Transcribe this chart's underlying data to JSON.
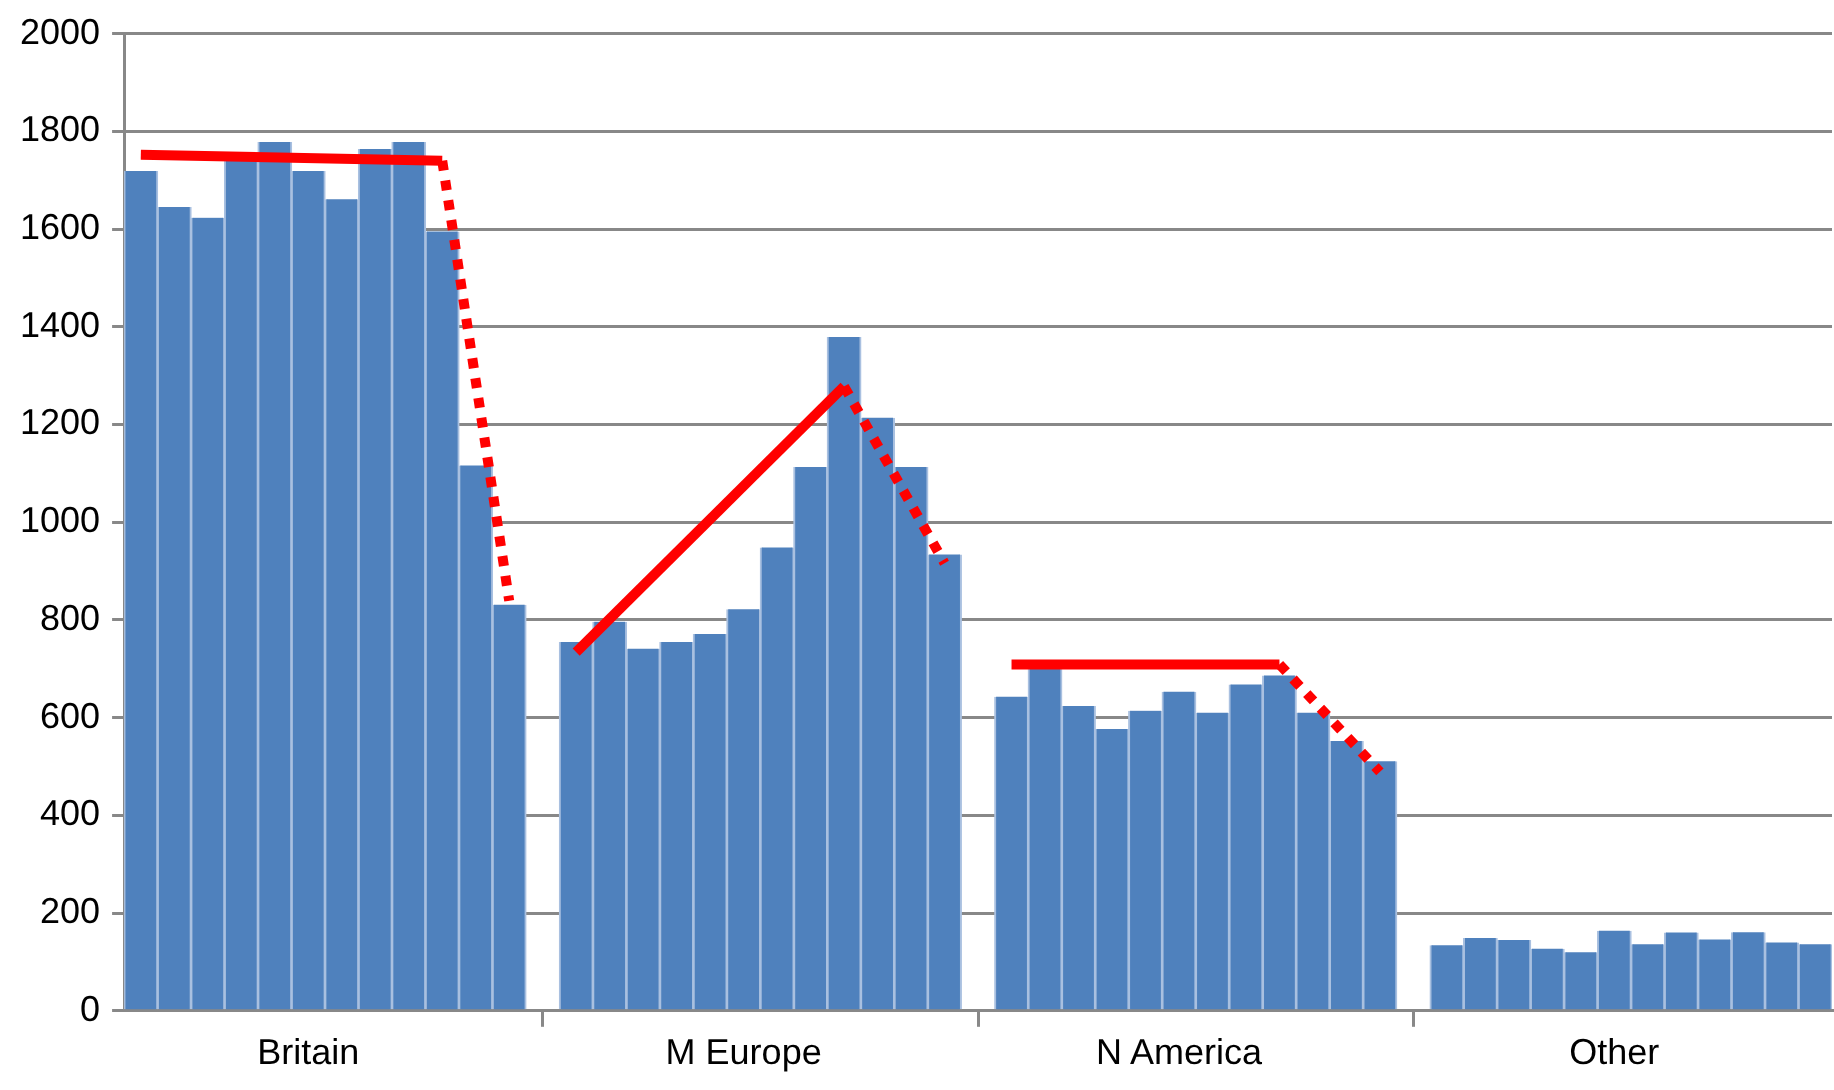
{
  "chart_data": {
    "type": "bar",
    "categories": [
      null,
      null,
      null,
      null,
      null,
      "Britain",
      null,
      null,
      null,
      null,
      null,
      null,
      null,
      null,
      null,
      null,
      null,
      null,
      "M Europe",
      null,
      null,
      null,
      null,
      null,
      null,
      null,
      null,
      null,
      null,
      null,
      null,
      "N America",
      null,
      null,
      null,
      null,
      null,
      null,
      null,
      null,
      null,
      null,
      null,
      null,
      "Other",
      null,
      null,
      null,
      null,
      null,
      null
    ],
    "ylim": [
      0,
      2000
    ],
    "yticks": [
      0,
      200,
      400,
      600,
      800,
      1000,
      1200,
      1400,
      1600,
      1800,
      2000
    ],
    "grid": "y",
    "legend": false,
    "series": [
      {
        "color": "#4f81bd",
        "values": [
          1719,
          1645,
          1623,
          1740,
          1778,
          1719,
          1661,
          1764,
          1778,
          1595,
          1116,
          831,
          null,
          755,
          796,
          741,
          755,
          771,
          822,
          948,
          1113,
          1379,
          1214,
          1113,
          934,
          null,
          643,
          704,
          624,
          577,
          614,
          653,
          610,
          668,
          686,
          610,
          552,
          511,
          null,
          134,
          149,
          145,
          127,
          120,
          164,
          136,
          160,
          146,
          161,
          140,
          136
        ]
      },
      {
        "type": "line",
        "color": "#ff0000",
        "line_style": "solid",
        "values": [
          1752,
          null,
          null,
          null,
          null,
          null,
          null,
          null,
          null,
          1740,
          null,
          null,
          null,
          null,
          null,
          null,
          null,
          null,
          null,
          null,
          null,
          null,
          null,
          null,
          null,
          null,
          null,
          null,
          null,
          null,
          null,
          null,
          null,
          null,
          null,
          null,
          null,
          null,
          null,
          null,
          null,
          null,
          null,
          null,
          null,
          null,
          null,
          null,
          null,
          null,
          null
        ]
      },
      {
        "type": "line",
        "color": "#ff0000",
        "line_style": "dotted",
        "values": [
          null,
          null,
          null,
          null,
          null,
          null,
          null,
          null,
          null,
          1740,
          null,
          839,
          null,
          null,
          null,
          null,
          null,
          null,
          null,
          null,
          null,
          null,
          null,
          null,
          null,
          null,
          null,
          null,
          null,
          null,
          null,
          null,
          null,
          null,
          null,
          null,
          null,
          null,
          null,
          null,
          null,
          null,
          null,
          null,
          null,
          null,
          null,
          null,
          null,
          null,
          null
        ]
      },
      {
        "type": "line",
        "color": "#ff0000",
        "line_style": "solid",
        "values": [
          null,
          null,
          null,
          null,
          null,
          null,
          null,
          null,
          null,
          null,
          null,
          null,
          null,
          734,
          null,
          null,
          null,
          null,
          null,
          null,
          null,
          1278,
          null,
          null,
          null,
          null,
          null,
          null,
          null,
          null,
          null,
          null,
          null,
          null,
          null,
          null,
          null,
          null,
          null,
          null,
          null,
          null,
          null,
          null,
          null,
          null,
          null,
          null,
          null,
          null,
          null
        ]
      },
      {
        "type": "line",
        "color": "#ff0000",
        "line_style": "dotted",
        "values": [
          null,
          null,
          null,
          null,
          null,
          null,
          null,
          null,
          null,
          null,
          null,
          null,
          null,
          null,
          null,
          null,
          null,
          null,
          null,
          null,
          null,
          1278,
          null,
          null,
          916,
          null,
          null,
          null,
          null,
          null,
          null,
          null,
          null,
          null,
          null,
          null,
          null,
          null,
          null,
          null,
          null,
          null,
          null,
          null,
          null,
          null,
          null,
          null,
          null,
          null,
          null
        ]
      },
      {
        "type": "line",
        "color": "#ff0000",
        "line_style": "solid",
        "values": [
          null,
          null,
          null,
          null,
          null,
          null,
          null,
          null,
          null,
          null,
          null,
          null,
          null,
          null,
          null,
          null,
          null,
          null,
          null,
          null,
          null,
          null,
          null,
          null,
          null,
          null,
          709,
          null,
          null,
          null,
          null,
          null,
          null,
          null,
          709,
          null,
          null,
          null,
          null,
          null,
          null,
          null,
          null,
          null,
          null,
          null,
          null,
          null,
          null,
          null,
          null
        ]
      },
      {
        "type": "line",
        "color": "#ff0000",
        "line_style": "dotted",
        "values": [
          null,
          null,
          null,
          null,
          null,
          null,
          null,
          null,
          null,
          null,
          null,
          null,
          null,
          null,
          null,
          null,
          null,
          null,
          null,
          null,
          null,
          null,
          null,
          null,
          null,
          null,
          null,
          null,
          null,
          null,
          null,
          null,
          null,
          null,
          709,
          null,
          null,
          489,
          null,
          null,
          null,
          null,
          null,
          null,
          null,
          null,
          null,
          null,
          null,
          null,
          null
        ]
      }
    ]
  }
}
